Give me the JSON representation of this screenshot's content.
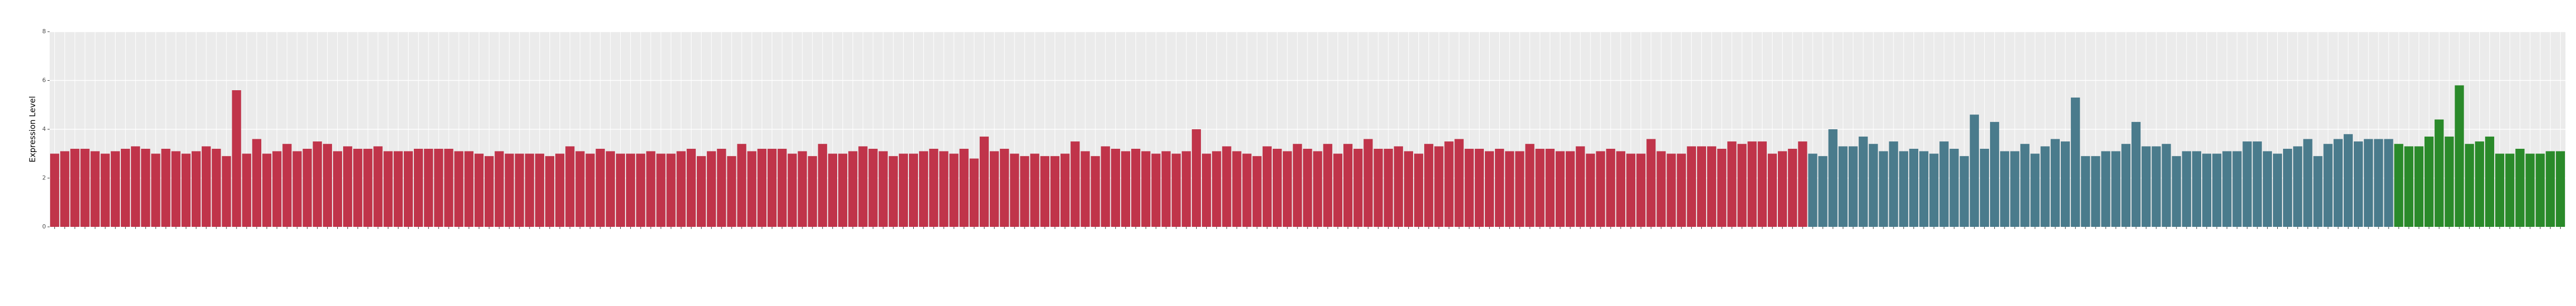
{
  "chart_data": {
    "type": "bar",
    "ylabel": "Expression Level",
    "ylim": [
      0,
      8
    ],
    "yticks": [
      0,
      2,
      4,
      6,
      8
    ],
    "grid": true,
    "series": [
      {
        "color": "#c0344a",
        "values": [
          3.0,
          3.1,
          3.2,
          3.2,
          3.1,
          3.0,
          3.1,
          3.2,
          3.3,
          3.2,
          3.0,
          3.2,
          3.1,
          3.0,
          3.1,
          3.3,
          3.2,
          2.9,
          5.6,
          3.0,
          3.6,
          3.0,
          3.1,
          3.4,
          3.1,
          3.2,
          3.5,
          3.4,
          3.1,
          3.3,
          3.2,
          3.2,
          3.3,
          3.1,
          3.1,
          3.1,
          3.2,
          3.2,
          3.2,
          3.2,
          3.1,
          3.1,
          3.0,
          2.9,
          3.1,
          3.0,
          3.0,
          3.0,
          3.0,
          2.9,
          3.0,
          3.3,
          3.1,
          3.0,
          3.2,
          3.1,
          3.0,
          3.0,
          3.0,
          3.1,
          3.0,
          3.0,
          3.1,
          3.2,
          2.9,
          3.1,
          3.2,
          2.9,
          3.4,
          3.1,
          3.2,
          3.2,
          3.2,
          3.0,
          3.1,
          2.9,
          3.4,
          3.0,
          3.0,
          3.1,
          3.3,
          3.2,
          3.1,
          2.9,
          3.0,
          3.0,
          3.1,
          3.2,
          3.1,
          3.0,
          3.2,
          2.8,
          3.7,
          3.1,
          3.2,
          3.0,
          2.9,
          3.0,
          2.9,
          2.9,
          3.0,
          3.5,
          3.1,
          2.9,
          3.3,
          3.2,
          3.1,
          3.2,
          3.1,
          3.0,
          3.1,
          3.0,
          3.1,
          4.0,
          3.0,
          3.1,
          3.3,
          3.1,
          3.0,
          2.9,
          3.3,
          3.2,
          3.1,
          3.4,
          3.2,
          3.1,
          3.4,
          3.0,
          3.4,
          3.2,
          3.6,
          3.2,
          3.2,
          3.3,
          3.1,
          3.0,
          3.4,
          3.3,
          3.5,
          3.6,
          3.2,
          3.2,
          3.1,
          3.2,
          3.1,
          3.1,
          3.4,
          3.2,
          3.2,
          3.1,
          3.1,
          3.3,
          3.0,
          3.1,
          3.2,
          3.1,
          3.0,
          3.0,
          3.6,
          3.1,
          3.0,
          3.0,
          3.3,
          3.3,
          3.3,
          3.2,
          3.5,
          3.4,
          3.5,
          3.5,
          3.0,
          3.1,
          3.2,
          3.5
        ]
      },
      {
        "color": "#4a7b8c",
        "values": [
          3.0,
          2.9,
          4.0,
          3.3,
          3.3,
          3.7,
          3.4,
          3.1,
          3.5,
          3.1,
          3.2,
          3.1,
          3.0,
          3.5,
          3.2,
          2.9,
          4.6,
          3.2,
          4.3,
          3.1,
          3.1,
          3.4,
          3.0,
          3.3,
          3.6,
          3.5,
          5.3,
          2.9,
          2.9,
          3.1,
          3.1,
          3.4,
          4.3,
          3.3,
          3.3,
          3.4,
          2.9,
          3.1,
          3.1,
          3.0,
          3.0,
          3.1,
          3.1,
          3.5,
          3.5,
          3.1,
          3.0,
          3.2,
          3.3,
          3.6,
          2.9,
          3.4,
          3.6,
          3.8,
          3.5,
          3.6,
          3.6,
          3.6
        ]
      },
      {
        "color": "#2a8a2a",
        "values": [
          3.4,
          3.3,
          3.3,
          3.7,
          4.4,
          3.7,
          5.8,
          3.4,
          3.5,
          3.7,
          3.0,
          3.0,
          3.2,
          3.0,
          3.0,
          3.1,
          3.1
        ]
      }
    ]
  }
}
